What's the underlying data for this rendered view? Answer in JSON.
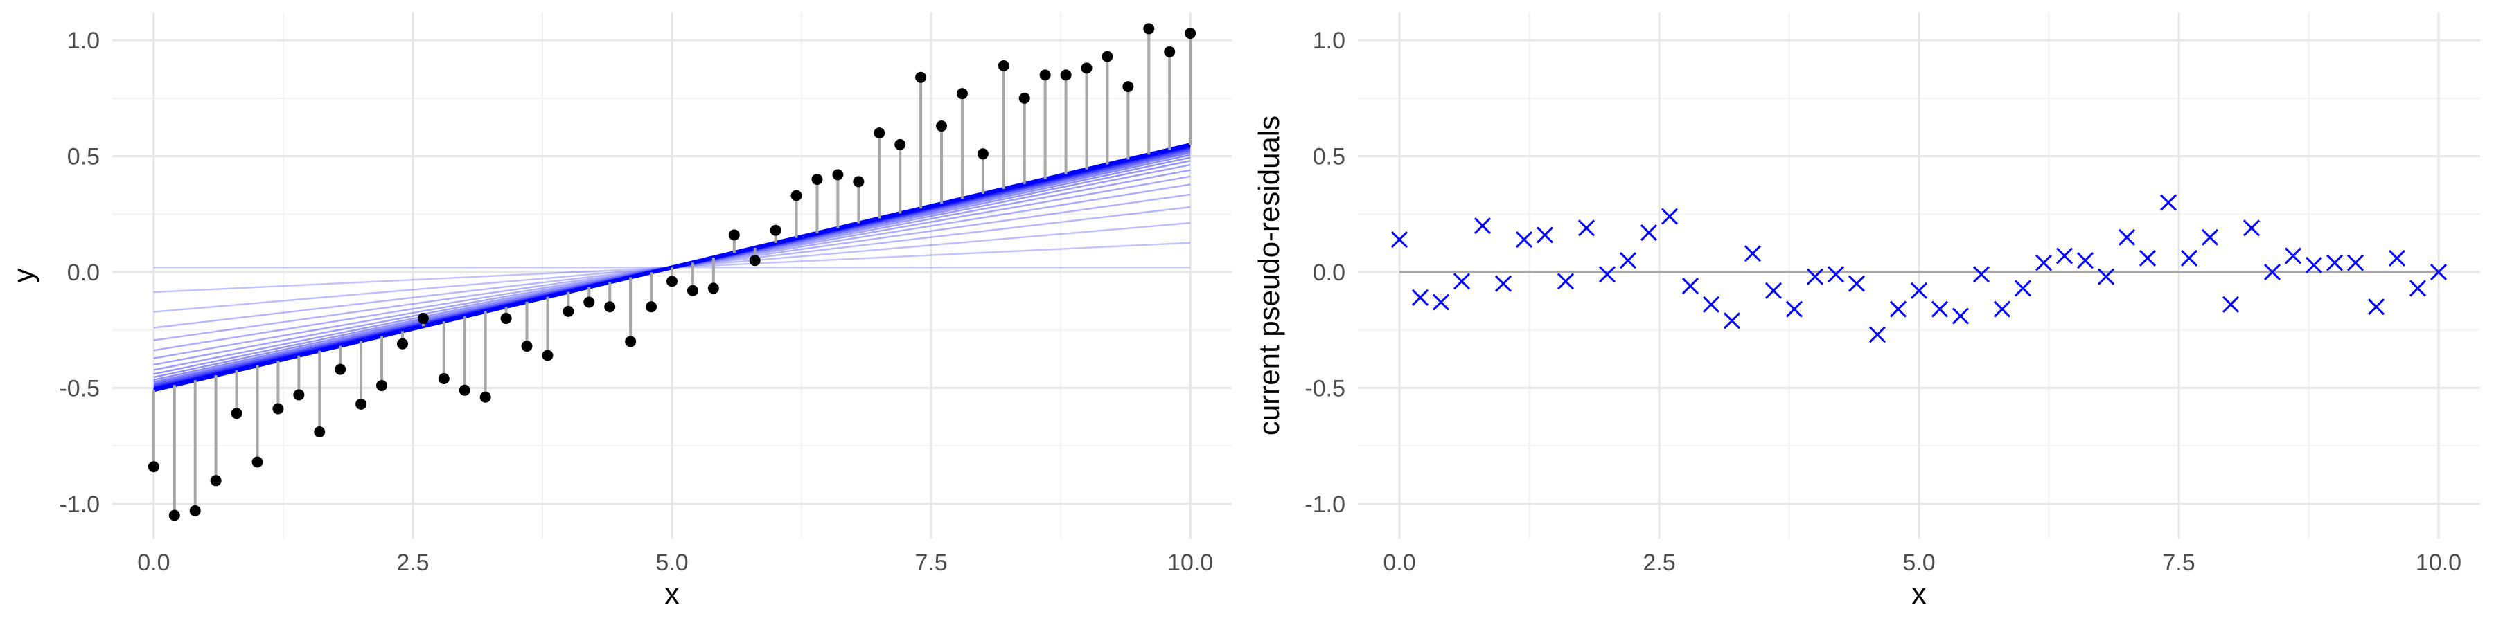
{
  "chart_data": [
    {
      "type": "scatter",
      "xlabel": "x",
      "ylabel": "y",
      "xlim": [
        -0.4,
        10.4
      ],
      "ylim": [
        -1.15,
        1.12
      ],
      "x_ticks": [
        "0.0",
        "2.5",
        "5.0",
        "7.5",
        "10.0"
      ],
      "y_ticks": [
        "-1.0",
        "-0.5",
        "0.0",
        "0.5",
        "1.0"
      ],
      "grid": true,
      "point_color": "#000000",
      "residual_line_color": "#a6a6a6",
      "fit_line_color": "#0000ff",
      "fitted_slopes": [
        0.0,
        0.0213,
        0.0384,
        0.0521,
        0.0629,
        0.0716,
        0.0785,
        0.084,
        0.0885,
        0.092,
        0.0948,
        0.0971,
        0.0989,
        0.1003,
        0.1014,
        0.1023,
        0.1031,
        0.1037,
        0.1041,
        0.1045,
        0.1048,
        0.105,
        0.1052,
        0.1054,
        0.1055,
        0.1056,
        0.1057,
        0.1058
      ],
      "fitted_intercepts": [
        0.02,
        -0.0867,
        -0.172,
        -0.2405,
        -0.2945,
        -0.338,
        -0.3725,
        -0.4,
        -0.4225,
        -0.44,
        -0.454,
        -0.4655,
        -0.4745,
        -0.4815,
        -0.487,
        -0.4915,
        -0.4955,
        -0.4985,
        -0.5005,
        -0.5025,
        -0.504,
        -0.505,
        -0.506,
        -0.507,
        -0.5075,
        -0.508,
        -0.5085,
        -0.509
      ],
      "x": [
        0.0,
        0.2,
        0.4,
        0.6,
        0.8,
        1.0,
        1.2,
        1.4,
        1.6,
        1.8,
        2.0,
        2.2,
        2.4,
        2.6,
        2.8,
        3.0,
        3.2,
        3.4,
        3.6,
        3.8,
        4.0,
        4.2,
        4.4,
        4.6,
        4.8,
        5.0,
        5.2,
        5.4,
        5.6,
        5.8,
        6.0,
        6.2,
        6.4,
        6.6,
        6.8,
        7.0,
        7.2,
        7.4,
        7.6,
        7.8,
        8.0,
        8.2,
        8.4,
        8.6,
        8.8,
        9.0,
        9.2,
        9.4,
        9.6,
        9.8,
        10.0
      ],
      "y": [
        -0.84,
        -1.05,
        -1.03,
        -0.9,
        -0.61,
        -0.82,
        -0.59,
        -0.53,
        -0.69,
        -0.42,
        -0.57,
        -0.49,
        -0.31,
        -0.2,
        -0.46,
        -0.51,
        -0.54,
        -0.2,
        -0.32,
        -0.36,
        -0.17,
        -0.13,
        -0.15,
        -0.3,
        -0.15,
        -0.04,
        -0.08,
        -0.07,
        0.16,
        0.05,
        0.18,
        0.33,
        0.4,
        0.42,
        0.39,
        0.6,
        0.55,
        0.84,
        0.63,
        0.77,
        0.51,
        0.89,
        0.75,
        0.85,
        0.85,
        0.88,
        0.93,
        0.8,
        1.05,
        0.95,
        1.03
      ]
    },
    {
      "type": "scatter",
      "xlabel": "x",
      "ylabel": "current pseudo-residuals",
      "xlim": [
        -0.4,
        10.4
      ],
      "ylim": [
        -1.15,
        1.12
      ],
      "x_ticks": [
        "0.0",
        "2.5",
        "5.0",
        "7.5",
        "10.0"
      ],
      "y_ticks": [
        "-1.0",
        "-0.5",
        "0.0",
        "0.5",
        "1.0"
      ],
      "grid": true,
      "marker": "x",
      "marker_color": "#0000ff",
      "reference_line_y": 0.0,
      "reference_line_color": "#a6a6a6",
      "x": [
        0.0,
        0.2,
        0.4,
        0.6,
        0.8,
        1.0,
        1.2,
        1.4,
        1.6,
        1.8,
        2.0,
        2.2,
        2.4,
        2.6,
        2.8,
        3.0,
        3.2,
        3.4,
        3.6,
        3.8,
        4.0,
        4.2,
        4.4,
        4.6,
        4.8,
        5.0,
        5.2,
        5.4,
        5.6,
        5.8,
        6.0,
        6.2,
        6.4,
        6.6,
        6.8,
        7.0,
        7.2,
        7.4,
        7.6,
        7.8,
        8.0,
        8.2,
        8.4,
        8.6,
        8.8,
        9.0,
        9.2,
        9.4,
        9.6,
        9.8,
        10.0
      ],
      "y": [
        0.14,
        -0.11,
        -0.13,
        -0.04,
        0.2,
        -0.05,
        0.14,
        0.16,
        -0.04,
        0.19,
        -0.01,
        0.05,
        0.17,
        0.24,
        -0.06,
        -0.14,
        -0.21,
        0.08,
        -0.08,
        -0.16,
        -0.02,
        -0.01,
        -0.05,
        -0.27,
        -0.16,
        -0.08,
        -0.16,
        -0.19,
        -0.01,
        -0.16,
        -0.07,
        0.04,
        0.07,
        0.05,
        -0.02,
        0.15,
        0.06,
        0.3,
        0.06,
        0.15,
        -0.14,
        0.19,
        0.0,
        0.07,
        0.03,
        0.04,
        0.04,
        -0.15,
        0.06,
        -0.07,
        0.0
      ]
    }
  ]
}
